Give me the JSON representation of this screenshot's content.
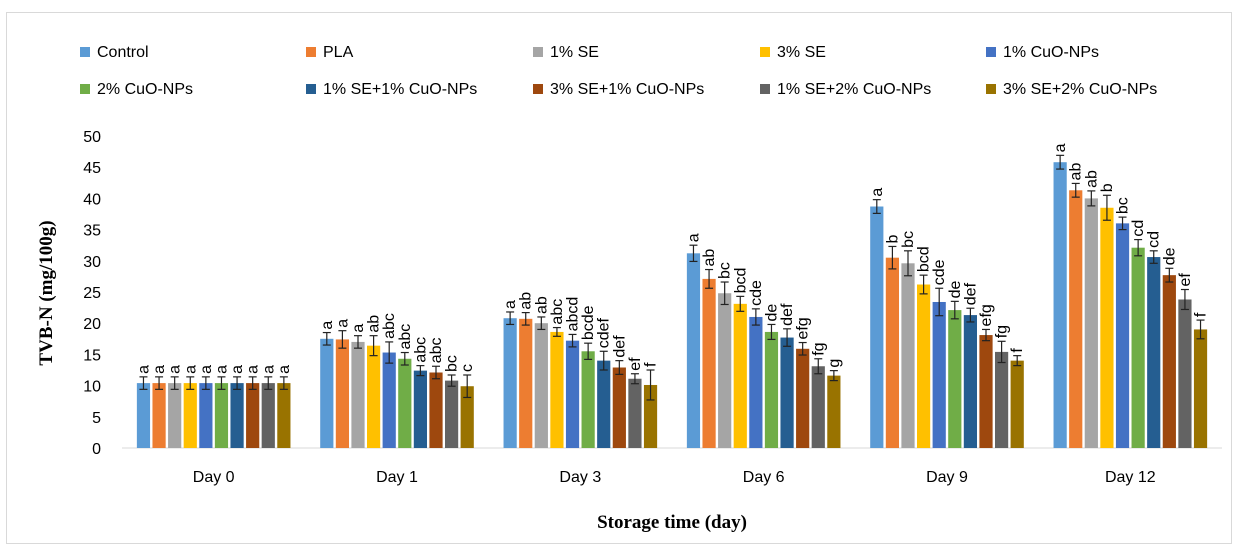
{
  "chart_data": {
    "type": "bar",
    "title": "",
    "xlabel": "Storage time (day)",
    "ylabel": "TVB-N (mg/100g)",
    "ylim": [
      0,
      50
    ],
    "yticks": [
      0,
      5,
      10,
      15,
      20,
      25,
      30,
      35,
      40,
      45,
      50
    ],
    "grid": false,
    "legend_position": "top",
    "categories": [
      "Day 0",
      "Day 1",
      "Day 3",
      "Day 6",
      "Day 9",
      "Day 12"
    ],
    "series": [
      {
        "name": "Control",
        "color": "#5b9bd5",
        "values": [
          10.4,
          17.5,
          20.8,
          31.2,
          38.7,
          45.8
        ],
        "errors": [
          1.0,
          1.0,
          1.0,
          1.3,
          1.1,
          1.1
        ],
        "letters": [
          "a",
          "a",
          "a",
          "a",
          "a",
          "a"
        ]
      },
      {
        "name": "PLA",
        "color": "#ed7d31",
        "values": [
          10.4,
          17.4,
          20.7,
          27.1,
          30.5,
          41.3
        ],
        "errors": [
          1.0,
          1.4,
          1.0,
          1.5,
          1.8,
          1.1
        ],
        "letters": [
          "a",
          "a",
          "ab",
          "ab",
          "b",
          "ab"
        ]
      },
      {
        "name": "1% SE",
        "color": "#a5a5a5",
        "values": [
          10.4,
          17.0,
          20.0,
          24.8,
          29.6,
          40.0
        ],
        "errors": [
          1.0,
          1.0,
          1.0,
          1.8,
          2.0,
          1.2
        ],
        "letters": [
          "a",
          "a",
          "ab",
          "bc",
          "bc",
          "ab"
        ]
      },
      {
        "name": "3% SE",
        "color": "#ffc000",
        "values": [
          10.4,
          16.4,
          18.6,
          23.1,
          26.2,
          38.5
        ],
        "errors": [
          1.0,
          1.6,
          0.7,
          1.2,
          1.5,
          2.0
        ],
        "letters": [
          "a",
          "ab",
          "abc",
          "bcd",
          "bcd",
          "b"
        ]
      },
      {
        "name": "1% CuO-NPs",
        "color": "#4472c4",
        "values": [
          10.4,
          15.3,
          17.2,
          21.0,
          23.4,
          36.0
        ],
        "errors": [
          1.0,
          1.7,
          1.0,
          1.3,
          2.2,
          1.0
        ],
        "letters": [
          "a",
          "abc",
          "abcd",
          "cde",
          "cde",
          "bc"
        ]
      },
      {
        "name": "2% CuO-NPs",
        "color": "#70ad47",
        "values": [
          10.4,
          14.3,
          15.5,
          18.6,
          22.1,
          32.1
        ],
        "errors": [
          1.0,
          1.0,
          1.3,
          1.2,
          1.4,
          1.3
        ],
        "letters": [
          "a",
          "abc",
          "bcde",
          "de",
          "de",
          "cd"
        ]
      },
      {
        "name": "1% SE+1% CuO-NPs",
        "color": "#255e91",
        "values": [
          10.4,
          12.4,
          14.0,
          17.7,
          21.3,
          30.6
        ],
        "errors": [
          1.0,
          0.8,
          1.5,
          1.4,
          1.1,
          1.0
        ],
        "letters": [
          "a",
          "abc",
          "cdef",
          "def",
          "def",
          "cd"
        ]
      },
      {
        "name": "3% SE+1% CuO-NPs",
        "color": "#9e480e",
        "values": [
          10.4,
          12.1,
          12.9,
          15.9,
          18.1,
          27.7
        ],
        "errors": [
          1.0,
          1.0,
          1.1,
          1.0,
          0.9,
          1.1
        ],
        "letters": [
          "a",
          "abc",
          "def",
          "efg",
          "efg",
          "de"
        ]
      },
      {
        "name": "1% SE+2% CuO-NPs",
        "color": "#636363",
        "values": [
          10.4,
          10.8,
          11.1,
          13.1,
          15.4,
          23.8
        ],
        "errors": [
          1.0,
          0.9,
          0.8,
          1.2,
          1.7,
          1.6
        ],
        "letters": [
          "a",
          "bc",
          "ef",
          "fg",
          "fg",
          "ef"
        ]
      },
      {
        "name": "3% SE+2% CuO-NPs",
        "color": "#997300",
        "values": [
          10.4,
          9.9,
          10.1,
          11.6,
          14.0,
          19.0
        ],
        "errors": [
          1.0,
          1.8,
          2.4,
          0.8,
          0.8,
          1.5
        ],
        "letters": [
          "a",
          "c",
          "f",
          "g",
          "f",
          "f"
        ]
      }
    ]
  }
}
